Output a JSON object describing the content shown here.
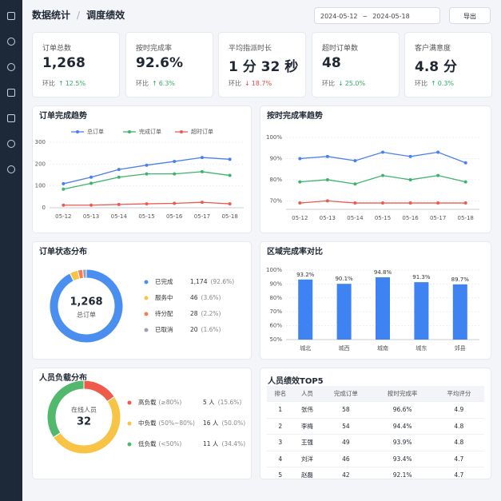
{
  "header": {
    "breadcrumb": [
      "数据统计",
      "调度绩效"
    ],
    "separator": "/",
    "date_start": "2024-05-12",
    "date_sep": "~",
    "date_end": "2024-05-18",
    "export": "导出"
  },
  "kpis": [
    {
      "label": "订单总数",
      "value": "1,268",
      "compare": "环比",
      "arrow": "↑",
      "change": "12.5%",
      "color": "#2fae6a"
    },
    {
      "label": "按时完成率",
      "value": "92.6%",
      "compare": "环比",
      "arrow": "↑",
      "change": "6.3%",
      "color": "#2fae6a"
    },
    {
      "label": "平均指派时长",
      "value": "1 分 32 秒",
      "compare": "环比",
      "arrow": "↓",
      "change": "18.7%",
      "color": "#e5484d"
    },
    {
      "label": "超时订单数",
      "value": "48",
      "compare": "环比",
      "arrow": "↓",
      "change": "25.0%",
      "color": "#2fae6a"
    },
    {
      "label": "客户满意度",
      "value": "4.8 分",
      "compare": "环比",
      "arrow": "↑",
      "change": "0.3%",
      "color": "#2fae6a"
    }
  ],
  "chart_data": [
    {
      "type": "line",
      "title": "订单完成趋势",
      "categories": [
        "05-12",
        "05-13",
        "05-14",
        "05-15",
        "05-16",
        "05-17",
        "05-18"
      ],
      "ylim": [
        0,
        300
      ],
      "yticks": [
        0,
        100,
        200,
        300
      ],
      "grid": true,
      "legend": "top",
      "series": [
        {
          "name": "总订单",
          "color": "#4a7ff0",
          "values": [
            110,
            140,
            175,
            195,
            212,
            230,
            222
          ]
        },
        {
          "name": "完成订单",
          "color": "#3db36b",
          "values": [
            85,
            112,
            140,
            155,
            155,
            165,
            148
          ]
        },
        {
          "name": "超时订单",
          "color": "#ee5a4f",
          "values": [
            12,
            12,
            15,
            18,
            20,
            25,
            18
          ]
        }
      ]
    },
    {
      "type": "line",
      "title": "按时完成率趋势",
      "categories": [
        "05-12",
        "05-13",
        "05-14",
        "05-15",
        "05-16",
        "05-17",
        "05-18"
      ],
      "ylim": [
        66,
        100
      ],
      "yticks": [
        {
          "value": 70,
          "label": "70%"
        },
        {
          "value": 80,
          "label": "80%"
        },
        {
          "value": 90,
          "label": "90%"
        },
        {
          "value": 100,
          "label": "100%"
        }
      ],
      "grid": true,
      "series": [
        {
          "color": "#4a7ff0",
          "values": [
            90,
            91,
            89,
            93,
            91,
            93,
            88
          ]
        },
        {
          "color": "#3db36b",
          "values": [
            79,
            80,
            78,
            82,
            80,
            82,
            79
          ]
        },
        {
          "color": "#ee5a4f",
          "values": [
            69,
            70,
            69,
            69,
            69,
            69,
            69
          ]
        }
      ]
    },
    {
      "type": "donut",
      "title": "订单状态分布",
      "center_value": "1,268",
      "center_label": "总订单",
      "categories": [
        "已完成",
        "服务中",
        "待分配",
        "已取消"
      ],
      "values": [
        1174,
        46,
        28,
        20
      ],
      "value_labels": [
        "1,174",
        "46",
        "28",
        "20"
      ],
      "percent_labels": [
        "(92.6%)",
        "(3.6%)",
        "(2.2%)",
        "(1.6%)"
      ],
      "colors": [
        "#4a8ff0",
        "#f7c446",
        "#f07f5a",
        "#9aa0b0"
      ]
    },
    {
      "type": "bar",
      "title": "区域完成率对比",
      "categories": [
        "城北",
        "城西",
        "城南",
        "城东",
        "郊县"
      ],
      "values": [
        93.2,
        90.1,
        94.8,
        91.3,
        89.7
      ],
      "value_labels": [
        "93.2%",
        "90.1%",
        "94.8%",
        "91.3%",
        "89.7%"
      ],
      "color": "#3f82f2",
      "ylim": [
        50,
        100
      ],
      "yticks": [
        {
          "value": 50,
          "label": "50%"
        },
        {
          "value": 60,
          "label": "60%"
        },
        {
          "value": 70,
          "label": "70%"
        },
        {
          "value": 80,
          "label": "80%"
        },
        {
          "value": 90,
          "label": "90%"
        },
        {
          "value": 100,
          "label": "100%"
        }
      ],
      "grid": true
    },
    {
      "type": "donut",
      "title": "人员负载分布",
      "center_value": "32",
      "center_label": "在线人员",
      "categories": [
        "高负载",
        "中负载",
        "低负载"
      ],
      "category_notes": [
        "(≥80%)",
        "(50%~80%)",
        "(<50%)"
      ],
      "values": [
        5,
        16,
        11
      ],
      "value_labels": [
        "5 人",
        "16 人",
        "11 人"
      ],
      "percent_labels": [
        "(15.6%)",
        "(50.0%)",
        "(34.4%)"
      ],
      "colors": [
        "#ef5b4b",
        "#f7c446",
        "#52b86e"
      ]
    }
  ],
  "table": {
    "title": "人员绩效TOP5",
    "columns": [
      "排名",
      "人员",
      "完成订单",
      "按时完成率",
      "平均评分"
    ],
    "rows": [
      [
        "1",
        "张伟",
        "58",
        "96.6%",
        "4.9"
      ],
      [
        "2",
        "李梅",
        "54",
        "94.4%",
        "4.8"
      ],
      [
        "3",
        "王强",
        "49",
        "93.9%",
        "4.8"
      ],
      [
        "4",
        "刘洋",
        "46",
        "93.4%",
        "4.7"
      ],
      [
        "5",
        "赵磊",
        "42",
        "92.1%",
        "4.7"
      ]
    ]
  }
}
